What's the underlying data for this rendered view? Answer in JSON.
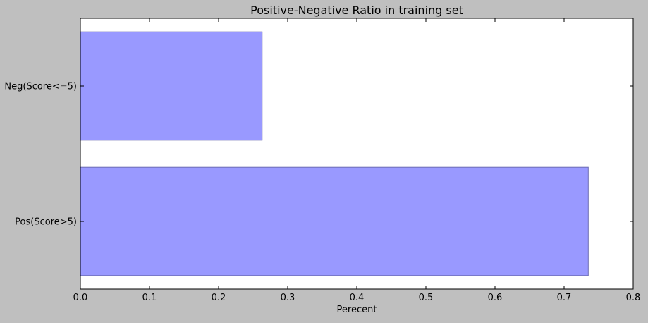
{
  "chart_data": {
    "type": "bar",
    "orientation": "horizontal",
    "title": "Positive-Negative Ratio in training set",
    "xlabel": "Perecent",
    "ylabel": "",
    "categories": [
      "Pos(Score>5)",
      "Neg(Score<=5)"
    ],
    "values": [
      0.735,
      0.263
    ],
    "xlim": [
      0.0,
      0.8
    ],
    "xticks": [
      "0.0",
      "0.1",
      "0.2",
      "0.3",
      "0.4",
      "0.5",
      "0.6",
      "0.7",
      "0.8"
    ],
    "grid": false,
    "legend": "none",
    "bar_color": "#9999ff",
    "bar_edge_color": "#6b6bb3",
    "plot_background": "#ffffff",
    "figure_background": "#bfbfbf"
  }
}
